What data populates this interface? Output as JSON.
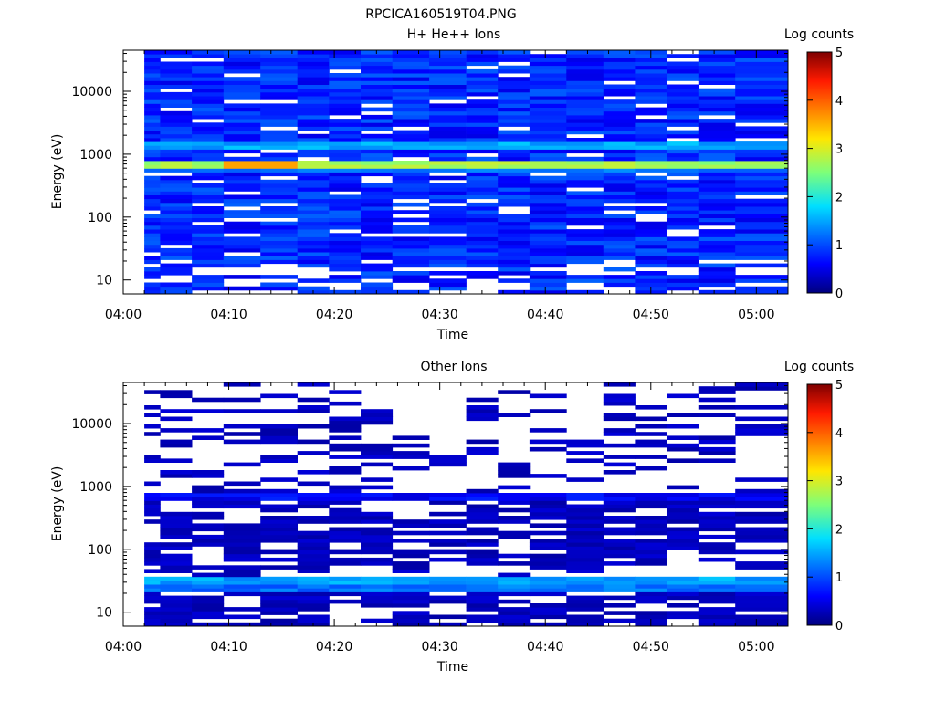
{
  "figure": {
    "title": "RPCICA160519T04.PNG"
  },
  "chart_data": [
    {
      "type": "heatmap",
      "title": "H+ He++ Ions",
      "xlabel": "Time",
      "ylabel": "Energy (eV)",
      "yscale": "log",
      "ylim": [
        6,
        45000
      ],
      "xlim": [
        "04:00",
        "05:03"
      ],
      "x_ticks": [
        "04:00",
        "04:10",
        "04:20",
        "04:30",
        "04:40",
        "04:50",
        "05:00"
      ],
      "y_ticks": [
        "10",
        "100",
        "1000",
        "10000"
      ],
      "time_bins": [
        "04:02",
        "04:05",
        "04:08",
        "04:11",
        "04:15",
        "04:18",
        "04:21",
        "04:24",
        "04:27",
        "04:31",
        "04:34",
        "04:37",
        "04:40",
        "04:44",
        "04:47",
        "04:50",
        "04:53",
        "04:56",
        "05:00"
      ],
      "bright_bands": [
        {
          "energy_eV": 1400,
          "log_counts": 1.5
        },
        {
          "energy_eV": 700,
          "log_counts": 2.7,
          "peak_log_counts": 3.6,
          "peak_times": [
            "04:11",
            "04:15"
          ]
        },
        {
          "energy_eV": 600,
          "log_counts": 1.3
        }
      ],
      "background_log_counts": 0.8,
      "colorbar": {
        "label": "Log counts",
        "range": [
          0,
          5
        ],
        "ticks": [
          "0",
          "1",
          "2",
          "3",
          "4",
          "5"
        ]
      },
      "grid": false
    },
    {
      "type": "heatmap",
      "title": "Other Ions",
      "xlabel": "Time",
      "ylabel": "Energy (eV)",
      "yscale": "log",
      "ylim": [
        6,
        45000
      ],
      "xlim": [
        "04:00",
        "05:03"
      ],
      "x_ticks": [
        "04:00",
        "04:10",
        "04:20",
        "04:30",
        "04:40",
        "04:50",
        "05:00"
      ],
      "y_ticks": [
        "10",
        "100",
        "1000",
        "10000"
      ],
      "time_bins": [
        "04:02",
        "04:05",
        "04:08",
        "04:11",
        "04:15",
        "04:18",
        "04:21",
        "04:24",
        "04:27",
        "04:31",
        "04:34",
        "04:37",
        "04:40",
        "04:44",
        "04:47",
        "04:50",
        "04:53",
        "04:56",
        "05:00"
      ],
      "bright_bands": [
        {
          "energy_eV": 30,
          "log_counts": 1.5
        },
        {
          "energy_eV": 25,
          "log_counts": 1.2
        },
        {
          "energy_eV": 700,
          "log_counts": 0.6
        }
      ],
      "background_log_counts": 0.3,
      "colorbar": {
        "label": "Log counts",
        "range": [
          0,
          5
        ],
        "ticks": [
          "0",
          "1",
          "2",
          "3",
          "4",
          "5"
        ]
      },
      "grid": false
    }
  ]
}
